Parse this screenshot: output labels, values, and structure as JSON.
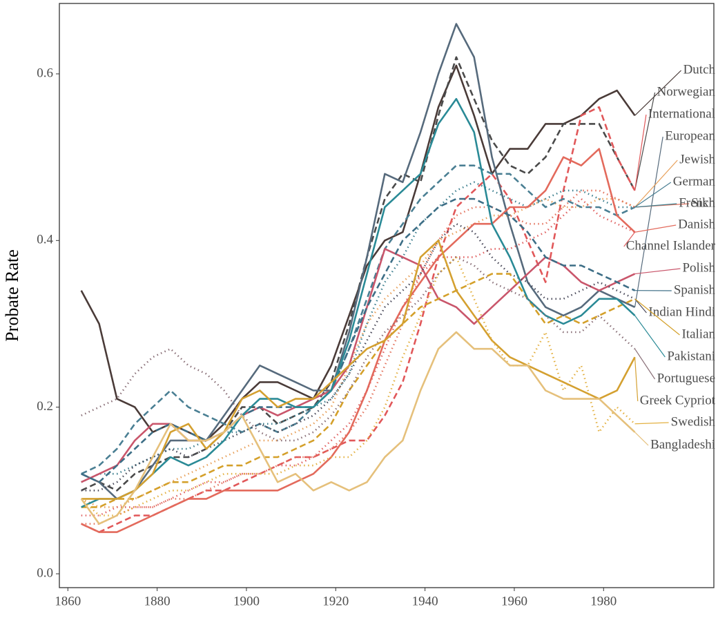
{
  "chart_data": {
    "type": "line",
    "y_label": "Probate Rate",
    "x": [
      1863,
      1867,
      1871,
      1875,
      1879,
      1883,
      1887,
      1891,
      1895,
      1899,
      1903,
      1907,
      1911,
      1915,
      1919,
      1923,
      1927,
      1931,
      1935,
      1939,
      1943,
      1947,
      1951,
      1955,
      1959,
      1963,
      1967,
      1971,
      1975,
      1979,
      1983,
      1987
    ],
    "xlim": [
      1858.1,
      2004.7
    ],
    "xticks": [
      1860,
      1880,
      1900,
      1920,
      1940,
      1960,
      1980
    ],
    "ylim": [
      -0.0166,
      0.6845
    ],
    "yticks": [
      {
        "value": 0,
        "label": "0.0"
      },
      0.2,
      0.4,
      0.6
    ],
    "grid": true,
    "series": [
      {
        "name": "Dutch",
        "color": "#4a3b38",
        "linestyle": "solid",
        "values": [
          0.34,
          0.3,
          0.21,
          0.2,
          0.17,
          0.18,
          0.17,
          0.16,
          0.18,
          0.21,
          0.23,
          0.23,
          0.22,
          0.21,
          0.25,
          0.31,
          0.37,
          0.4,
          0.41,
          0.48,
          0.56,
          0.61,
          0.55,
          0.48,
          0.51,
          0.51,
          0.54,
          0.54,
          0.55,
          0.57,
          0.58,
          0.55
        ]
      },
      {
        "name": "Norwegian",
        "color": "#4a4a4a",
        "linestyle": "dashed",
        "values": [
          0.1,
          0.11,
          0.1,
          0.12,
          0.13,
          0.14,
          0.14,
          0.15,
          0.17,
          0.2,
          0.2,
          0.18,
          0.19,
          0.2,
          0.23,
          0.3,
          0.38,
          0.45,
          0.48,
          0.47,
          0.55,
          0.62,
          0.57,
          0.52,
          0.49,
          0.48,
          0.5,
          0.54,
          0.54,
          0.54,
          0.5,
          0.46
        ]
      },
      {
        "name": "International",
        "color": "#e15759",
        "linestyle": "dashed",
        "values": [
          0.06,
          0.05,
          0.06,
          0.07,
          0.07,
          0.08,
          0.09,
          0.1,
          0.1,
          0.11,
          0.12,
          0.13,
          0.14,
          0.14,
          0.15,
          0.16,
          0.16,
          0.19,
          0.23,
          0.3,
          0.38,
          0.44,
          0.46,
          0.48,
          0.45,
          0.4,
          0.35,
          0.46,
          0.55,
          0.56,
          0.5,
          0.46
        ]
      },
      {
        "name": "European",
        "color": "#566a7c",
        "linestyle": "solid",
        "values": [
          0.12,
          0.11,
          0.09,
          0.1,
          0.13,
          0.16,
          0.16,
          0.16,
          0.19,
          0.22,
          0.25,
          0.24,
          0.23,
          0.22,
          0.22,
          0.29,
          0.38,
          0.48,
          0.47,
          0.53,
          0.6,
          0.66,
          0.62,
          0.5,
          0.42,
          0.35,
          0.32,
          0.31,
          0.32,
          0.34,
          0.33,
          0.32
        ]
      },
      {
        "name": "Jewish",
        "color": "#e8a05a",
        "linestyle": "dotted",
        "values": [
          0.09,
          0.08,
          0.08,
          0.09,
          0.1,
          0.11,
          0.12,
          0.13,
          0.14,
          0.15,
          0.16,
          0.16,
          0.17,
          0.18,
          0.2,
          0.25,
          0.3,
          0.33,
          0.35,
          0.37,
          0.4,
          0.41,
          0.42,
          0.43,
          0.43,
          0.44,
          0.45,
          0.44,
          0.44,
          0.45,
          0.45,
          0.44
        ]
      },
      {
        "name": "German",
        "color": "#4a7f93",
        "linestyle": "dashed",
        "values": [
          0.12,
          0.13,
          0.15,
          0.18,
          0.2,
          0.22,
          0.2,
          0.19,
          0.18,
          0.17,
          0.18,
          0.17,
          0.18,
          0.2,
          0.22,
          0.27,
          0.33,
          0.39,
          0.42,
          0.45,
          0.47,
          0.49,
          0.49,
          0.48,
          0.48,
          0.46,
          0.44,
          0.45,
          0.44,
          0.44,
          0.43,
          0.44
        ]
      },
      {
        "name": "Sikh",
        "color": "#e3735e",
        "linestyle": "dotted",
        "values": [
          0.06,
          0.06,
          0.07,
          0.08,
          0.08,
          0.09,
          0.09,
          0.1,
          0.11,
          0.12,
          0.12,
          0.13,
          0.14,
          0.14,
          0.15,
          0.17,
          0.2,
          0.25,
          0.3,
          0.36,
          0.4,
          0.43,
          0.44,
          0.44,
          0.43,
          0.42,
          0.42,
          0.44,
          0.46,
          0.46,
          0.45,
          0.44
        ]
      },
      {
        "name": "French",
        "color": "#3d7f8f",
        "linestyle": "dotted",
        "values": [
          0.11,
          0.12,
          0.12,
          0.13,
          0.14,
          0.15,
          0.15,
          0.16,
          0.17,
          0.17,
          0.18,
          0.18,
          0.19,
          0.2,
          0.21,
          0.24,
          0.3,
          0.35,
          0.38,
          0.42,
          0.44,
          0.46,
          0.47,
          0.46,
          0.45,
          0.44,
          0.45,
          0.46,
          0.46,
          0.45,
          0.44,
          0.44
        ]
      },
      {
        "name": "Danish",
        "color": "#e36a5c",
        "linestyle": "solid",
        "values": [
          0.06,
          0.05,
          0.05,
          0.06,
          0.07,
          0.08,
          0.09,
          0.09,
          0.1,
          0.1,
          0.1,
          0.1,
          0.11,
          0.12,
          0.14,
          0.17,
          0.22,
          0.28,
          0.32,
          0.35,
          0.38,
          0.4,
          0.42,
          0.42,
          0.44,
          0.44,
          0.46,
          0.5,
          0.49,
          0.51,
          0.43,
          0.41
        ]
      },
      {
        "name": "Channel Islander",
        "color": "#e06060",
        "linestyle": "dotted",
        "values": [
          0.07,
          0.07,
          0.08,
          0.08,
          0.08,
          0.09,
          0.1,
          0.11,
          0.11,
          0.12,
          0.12,
          0.13,
          0.13,
          0.14,
          0.16,
          0.18,
          0.22,
          0.27,
          0.32,
          0.36,
          0.38,
          0.38,
          0.38,
          0.39,
          0.39,
          0.4,
          0.41,
          0.43,
          0.45,
          0.43,
          0.42,
          0.41
        ]
      },
      {
        "name": "Polish",
        "color": "#c9566b",
        "linestyle": "solid",
        "values": [
          0.11,
          0.12,
          0.13,
          0.16,
          0.18,
          0.18,
          0.16,
          0.16,
          0.17,
          0.19,
          0.2,
          0.19,
          0.2,
          0.21,
          0.22,
          0.25,
          0.32,
          0.39,
          0.38,
          0.37,
          0.33,
          0.32,
          0.3,
          0.32,
          0.34,
          0.36,
          0.38,
          0.37,
          0.35,
          0.34,
          0.35,
          0.36
        ]
      },
      {
        "name": "Spanish",
        "color": "#3d6e86",
        "linestyle": "dashed",
        "values": [
          0.12,
          0.11,
          0.13,
          0.15,
          0.17,
          0.18,
          0.17,
          0.16,
          0.17,
          0.19,
          0.2,
          0.2,
          0.2,
          0.2,
          0.22,
          0.27,
          0.32,
          0.36,
          0.4,
          0.42,
          0.44,
          0.45,
          0.45,
          0.44,
          0.43,
          0.41,
          0.38,
          0.37,
          0.37,
          0.36,
          0.35,
          0.34
        ]
      },
      {
        "name": "Indian Hindi",
        "color": "#4a4a5a",
        "linestyle": "dotted",
        "values": [
          0.1,
          0.1,
          0.11,
          0.13,
          0.14,
          0.15,
          0.14,
          0.15,
          0.16,
          0.17,
          0.18,
          0.17,
          0.18,
          0.19,
          0.21,
          0.24,
          0.28,
          0.32,
          0.34,
          0.36,
          0.4,
          0.42,
          0.41,
          0.38,
          0.36,
          0.35,
          0.33,
          0.33,
          0.34,
          0.35,
          0.34,
          0.33
        ]
      },
      {
        "name": "Italian",
        "color": "#d4a02a",
        "linestyle": "dashed",
        "values": [
          0.08,
          0.08,
          0.09,
          0.09,
          0.1,
          0.11,
          0.11,
          0.12,
          0.13,
          0.13,
          0.14,
          0.14,
          0.15,
          0.16,
          0.18,
          0.22,
          0.25,
          0.28,
          0.3,
          0.32,
          0.33,
          0.34,
          0.35,
          0.36,
          0.36,
          0.33,
          0.3,
          0.31,
          0.3,
          0.31,
          0.32,
          0.33
        ]
      },
      {
        "name": "Pakistani",
        "color": "#2a8a96",
        "linestyle": "solid",
        "values": [
          0.08,
          0.09,
          0.09,
          0.1,
          0.12,
          0.14,
          0.13,
          0.14,
          0.16,
          0.19,
          0.21,
          0.21,
          0.2,
          0.2,
          0.22,
          0.28,
          0.36,
          0.44,
          0.46,
          0.48,
          0.54,
          0.57,
          0.53,
          0.42,
          0.38,
          0.33,
          0.31,
          0.3,
          0.31,
          0.33,
          0.33,
          0.31
        ]
      },
      {
        "name": "Portuguese",
        "color": "#8a7078",
        "linestyle": "dotted",
        "values": [
          0.19,
          0.2,
          0.21,
          0.24,
          0.26,
          0.27,
          0.25,
          0.24,
          0.22,
          0.19,
          0.17,
          0.16,
          0.16,
          0.17,
          0.19,
          0.22,
          0.26,
          0.29,
          0.31,
          0.33,
          0.36,
          0.38,
          0.37,
          0.35,
          0.34,
          0.33,
          0.31,
          0.29,
          0.29,
          0.31,
          0.29,
          0.27
        ]
      },
      {
        "name": "Greek Cypriot",
        "color": "#d4a030",
        "linestyle": "solid",
        "values": [
          0.09,
          0.09,
          0.09,
          0.1,
          0.12,
          0.17,
          0.18,
          0.15,
          0.17,
          0.21,
          0.22,
          0.2,
          0.21,
          0.21,
          0.23,
          0.25,
          0.27,
          0.28,
          0.3,
          0.38,
          0.4,
          0.34,
          0.31,
          0.28,
          0.26,
          0.25,
          0.24,
          0.23,
          0.22,
          0.21,
          0.22,
          0.26
        ]
      },
      {
        "name": "Swedish",
        "color": "#e3b040",
        "linestyle": "dotted",
        "values": [
          0.09,
          0.07,
          0.07,
          0.08,
          0.09,
          0.1,
          0.1,
          0.11,
          0.12,
          0.12,
          0.12,
          0.12,
          0.13,
          0.13,
          0.14,
          0.14,
          0.16,
          0.2,
          0.26,
          0.31,
          0.36,
          0.38,
          0.33,
          0.28,
          0.25,
          0.25,
          0.29,
          0.22,
          0.25,
          0.17,
          0.2,
          0.18
        ]
      },
      {
        "name": "Bangladeshi",
        "color": "#e5c07b",
        "linestyle": "solid",
        "values": [
          0.09,
          0.06,
          0.07,
          0.1,
          0.14,
          0.18,
          0.16,
          0.16,
          0.17,
          0.19,
          0.15,
          0.11,
          0.12,
          0.1,
          0.11,
          0.1,
          0.11,
          0.14,
          0.16,
          0.22,
          0.27,
          0.29,
          0.27,
          0.27,
          0.25,
          0.25,
          0.22,
          0.21,
          0.21,
          0.21,
          0.19,
          0.17
        ]
      }
    ]
  }
}
